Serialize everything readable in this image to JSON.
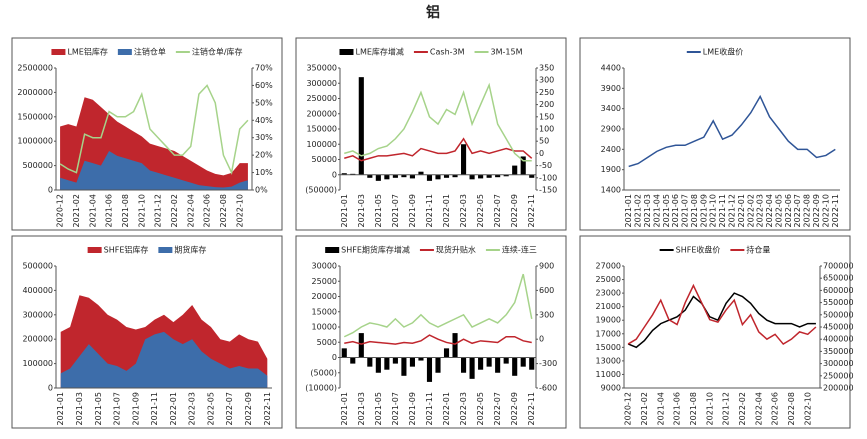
{
  "title": "铝",
  "chart_data": [
    {
      "type": "area",
      "categories": [
        "2020-12",
        null,
        "2021-02",
        null,
        "2021-04",
        null,
        "2021-06",
        null,
        "2021-08",
        null,
        "2021-10",
        null,
        "2021-12",
        null,
        "2022-02",
        null,
        "2022-04",
        null,
        "2022-06",
        null,
        "2022-08",
        null,
        "2022-10",
        null
      ],
      "series": [
        {
          "name": "LME铝库存",
          "type": "area",
          "color": "#c0262d",
          "values": [
            1300000,
            1350000,
            1300000,
            1900000,
            1850000,
            1700000,
            1550000,
            1400000,
            1300000,
            1200000,
            1100000,
            950000,
            900000,
            850000,
            800000,
            700000,
            600000,
            500000,
            400000,
            330000,
            300000,
            350000,
            550000,
            550000
          ]
        },
        {
          "name": "注销仓单",
          "type": "area",
          "color": "#3d6daa",
          "values": [
            250000,
            200000,
            150000,
            600000,
            550000,
            500000,
            800000,
            700000,
            650000,
            600000,
            550000,
            400000,
            350000,
            300000,
            250000,
            200000,
            150000,
            100000,
            80000,
            60000,
            50000,
            70000,
            150000,
            200000
          ]
        },
        {
          "name": "注销仓单/库存",
          "type": "line",
          "axis": "y2",
          "color": "#a6d38a",
          "values": [
            15,
            12,
            10,
            32,
            30,
            30,
            45,
            42,
            42,
            45,
            55,
            35,
            30,
            25,
            20,
            20,
            25,
            55,
            60,
            50,
            20,
            10,
            35,
            40
          ]
        }
      ],
      "ylim": [
        0,
        2500000
      ],
      "yticks": [
        0,
        500000,
        1000000,
        1500000,
        2000000,
        2500000
      ],
      "y2lim": [
        0,
        70
      ],
      "y2ticks": [
        {
          "value": 0,
          "label": "0%"
        },
        {
          "value": 10,
          "label": "10%"
        },
        {
          "value": 20,
          "label": "20%"
        },
        {
          "value": 30,
          "label": "30%"
        },
        {
          "value": 40,
          "label": "40%"
        },
        {
          "value": 50,
          "label": "50%"
        },
        {
          "value": 60,
          "label": "60%"
        },
        {
          "value": 70,
          "label": "70%"
        }
      ]
    },
    {
      "type": "bar",
      "categories": [
        "2021-01",
        null,
        "2021-03",
        null,
        "2021-05",
        null,
        "2021-07",
        null,
        "2021-09",
        null,
        "2021-11",
        null,
        "2022-01",
        null,
        "2022-03",
        null,
        "2022-05",
        null,
        "2022-07",
        null,
        "2022-09",
        null,
        "2022-11"
      ],
      "series": [
        {
          "name": "LME库存增减",
          "type": "bar",
          "color": "#000000",
          "values": [
            5000,
            3000,
            320000,
            -10000,
            -20000,
            -15000,
            -10000,
            -8000,
            -12000,
            10000,
            -20000,
            -15000,
            -10000,
            -8000,
            100000,
            -15000,
            -12000,
            -10000,
            -8000,
            -5000,
            30000,
            60000,
            -10000
          ]
        },
        {
          "name": "Cash-3M",
          "type": "line",
          "axis": "y2",
          "color": "#c0262d",
          "values": [
            -20,
            -10,
            -30,
            -20,
            -10,
            -10,
            -5,
            0,
            -10,
            20,
            10,
            0,
            0,
            10,
            60,
            0,
            10,
            0,
            10,
            20,
            10,
            10,
            -20
          ]
        },
        {
          "name": "3M-15M",
          "type": "line",
          "axis": "y2",
          "color": "#a6d38a",
          "values": [
            0,
            10,
            -10,
            0,
            20,
            30,
            60,
            100,
            170,
            250,
            150,
            120,
            180,
            160,
            250,
            120,
            200,
            280,
            120,
            60,
            0,
            -30,
            -30
          ]
        }
      ],
      "ylim": [
        -50000,
        350000
      ],
      "yticks": [
        {
          "value": -50000,
          "label": "(50000)"
        },
        0,
        50000,
        100000,
        150000,
        200000,
        250000,
        300000,
        350000
      ],
      "y2lim": [
        -150,
        350
      ],
      "y2ticks": [
        -150,
        -100,
        -50,
        0,
        50,
        100,
        150,
        200,
        250,
        300,
        350
      ]
    },
    {
      "type": "line",
      "categories": [
        "2021-01",
        "2021-02",
        "2021-03",
        "2021-04",
        "2021-05",
        "2021-06",
        "2021-07",
        "2021-08",
        "2021-09",
        "2021-10",
        "2021-11",
        "2021-12",
        "2022-01",
        "2022-02",
        "2022-03",
        "2022-04",
        "2022-05",
        "2022-06",
        "2022-07",
        "2022-08",
        "2022-09",
        "2022-10",
        "2022-11"
      ],
      "series": [
        {
          "name": "LME收盘价",
          "type": "line",
          "color": "#2f5597",
          "values": [
            1980,
            2050,
            2200,
            2350,
            2450,
            2500,
            2500,
            2600,
            2700,
            3100,
            2650,
            2750,
            3000,
            3300,
            3700,
            3200,
            2900,
            2600,
            2400,
            2400,
            2200,
            2250,
            2400
          ]
        }
      ],
      "ylim": [
        1400,
        4400
      ],
      "yticks": [
        1400,
        1900,
        2400,
        2900,
        3400,
        3900,
        4400
      ]
    },
    {
      "type": "area",
      "categories": [
        "2021-01",
        null,
        "2021-03",
        null,
        "2021-05",
        null,
        "2021-07",
        null,
        "2021-09",
        null,
        "2021-11",
        null,
        "2022-01",
        null,
        "2022-03",
        null,
        "2022-05",
        null,
        "2022-07",
        null,
        "2022-09",
        null,
        "2022-11"
      ],
      "series": [
        {
          "name": "SHFE铝库存",
          "type": "area",
          "color": "#c0262d",
          "values": [
            230000,
            250000,
            380000,
            370000,
            340000,
            300000,
            280000,
            250000,
            240000,
            250000,
            280000,
            300000,
            270000,
            300000,
            340000,
            280000,
            250000,
            200000,
            190000,
            220000,
            200000,
            190000,
            120000
          ]
        },
        {
          "name": "期货库存",
          "type": "area",
          "color": "#3d6daa",
          "values": [
            60000,
            80000,
            130000,
            180000,
            140000,
            100000,
            90000,
            70000,
            100000,
            200000,
            220000,
            230000,
            200000,
            180000,
            200000,
            150000,
            120000,
            100000,
            80000,
            90000,
            80000,
            80000,
            50000
          ]
        }
      ],
      "ylim": [
        0,
        500000
      ],
      "yticks": [
        0,
        100000,
        200000,
        300000,
        400000,
        500000
      ]
    },
    {
      "type": "bar",
      "categories": [
        "2021-01",
        null,
        "2021-03",
        null,
        "2021-05",
        null,
        "2021-07",
        null,
        "2021-09",
        null,
        "2021-11",
        null,
        "2022-01",
        null,
        "2022-03",
        null,
        "2022-05",
        null,
        "2022-07",
        null,
        "2022-09",
        null,
        "2022-11"
      ],
      "series": [
        {
          "name": "SHFE期货库存增减",
          "type": "bar",
          "color": "#000000",
          "values": [
            3000,
            -2000,
            8000,
            -3000,
            -5000,
            -4000,
            -2000,
            -6000,
            -3000,
            -1000,
            -8000,
            -5000,
            3000,
            8000,
            -5000,
            -7000,
            -4000,
            -3000,
            -5000,
            -2000,
            -6000,
            -3000,
            -4000
          ]
        },
        {
          "name": "现货升贴水",
          "type": "line",
          "axis": "y2",
          "color": "#c0262d",
          "values": [
            -50,
            -30,
            -60,
            -30,
            -40,
            -50,
            -60,
            -40,
            -50,
            -20,
            50,
            0,
            -40,
            -60,
            0,
            -50,
            -20,
            -30,
            -40,
            30,
            30,
            -20,
            -40
          ]
        },
        {
          "name": "连续-连三",
          "type": "line",
          "axis": "y2",
          "color": "#a6d38a",
          "values": [
            30,
            80,
            150,
            200,
            180,
            150,
            250,
            150,
            200,
            300,
            200,
            150,
            200,
            250,
            300,
            150,
            200,
            250,
            200,
            300,
            450,
            800,
            250
          ]
        }
      ],
      "ylim": [
        -10000,
        30000
      ],
      "yticks": [
        {
          "value": -10000,
          "label": "(10000)"
        },
        {
          "value": -5000,
          "label": "(5000)"
        },
        0,
        5000,
        10000,
        15000,
        20000,
        25000,
        30000
      ],
      "y2lim": [
        -600,
        900
      ],
      "y2ticks": [
        -600,
        -300,
        0,
        300,
        600,
        900
      ]
    },
    {
      "type": "line",
      "categories": [
        "2020-12",
        null,
        "2021-02",
        null,
        "2021-04",
        null,
        "2021-06",
        null,
        "2021-08",
        null,
        "2021-10",
        null,
        "2021-12",
        null,
        "2022-02",
        null,
        "2022-04",
        null,
        "2022-06",
        null,
        "2022-08",
        null,
        "2022-10",
        null
      ],
      "series": [
        {
          "name": "SHFE收盘价",
          "type": "line",
          "color": "#000000",
          "values": [
            15500,
            15000,
            16000,
            17500,
            18500,
            19000,
            19500,
            20500,
            22500,
            21500,
            19500,
            19000,
            21500,
            23000,
            22500,
            21500,
            20000,
            19000,
            18500,
            18500,
            18500,
            18000,
            18500,
            18500
          ]
        },
        {
          "name": "持仓量",
          "type": "line",
          "axis": "y2",
          "color": "#c0262d",
          "values": [
            380000,
            400000,
            450000,
            500000,
            560000,
            480000,
            460000,
            550000,
            620000,
            550000,
            480000,
            470000,
            520000,
            560000,
            460000,
            500000,
            430000,
            400000,
            420000,
            380000,
            400000,
            430000,
            420000,
            450000
          ]
        }
      ],
      "ylim": [
        9000,
        27000
      ],
      "yticks": [
        9000,
        11000,
        13000,
        15000,
        17000,
        19000,
        21000,
        23000,
        25000,
        27000
      ],
      "y2lim": [
        200000,
        700000
      ],
      "y2ticks": [
        200000,
        250000,
        300000,
        350000,
        400000,
        450000,
        500000,
        550000,
        600000,
        650000,
        700000
      ]
    }
  ]
}
